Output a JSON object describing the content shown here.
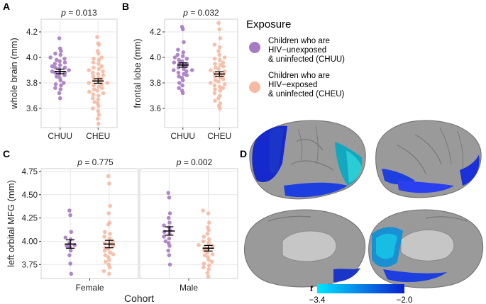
{
  "colors": {
    "chuu": "#a77bc3",
    "cheu": "#f6b9a2",
    "panel_bg": "#ffffff",
    "grid": "#e6e6e6",
    "axis": "#333333",
    "brain_base": "#9a9a9a",
    "t_low": "#00e5ff",
    "t_high": "#0a1fd0"
  },
  "chart_data": [
    {
      "panel": "A",
      "type": "scatter",
      "subtype": "beeswarm with mean ± SE",
      "title": "p = 0.013",
      "xlabel": "",
      "ylabel": "whole brain (mm)",
      "categories": [
        "CHUU",
        "CHEU"
      ],
      "yticks": [
        3.6,
        3.8,
        4.0,
        4.2
      ],
      "ylim": [
        3.45,
        4.3
      ],
      "series": [
        {
          "name": "CHUU",
          "mean": 3.89,
          "se": 0.018,
          "values": [
            4.15,
            4.07,
            4.05,
            4.03,
            4.02,
            4.0,
            3.99,
            3.98,
            3.97,
            3.96,
            3.95,
            3.94,
            3.93,
            3.92,
            3.92,
            3.91,
            3.9,
            3.89,
            3.88,
            3.88,
            3.87,
            3.86,
            3.85,
            3.84,
            3.82,
            3.8,
            3.79,
            3.78,
            3.76,
            3.75,
            3.72,
            3.68
          ]
        },
        {
          "name": "CHEU",
          "mean": 3.815,
          "se": 0.018,
          "values": [
            4.16,
            4.11,
            4.1,
            4.05,
            4.03,
            4.0,
            3.99,
            3.98,
            3.96,
            3.95,
            3.93,
            3.92,
            3.91,
            3.9,
            3.89,
            3.88,
            3.87,
            3.86,
            3.85,
            3.84,
            3.83,
            3.82,
            3.81,
            3.8,
            3.8,
            3.79,
            3.78,
            3.77,
            3.76,
            3.75,
            3.74,
            3.73,
            3.72,
            3.71,
            3.7,
            3.68,
            3.67,
            3.65,
            3.64,
            3.62,
            3.6,
            3.58,
            3.55,
            3.52,
            3.48
          ]
        }
      ]
    },
    {
      "panel": "B",
      "type": "scatter",
      "subtype": "beeswarm with mean ± SE",
      "title": "p = 0.032",
      "xlabel": "",
      "ylabel": "frontal lobe (mm)",
      "categories": [
        "CHUU",
        "CHEU"
      ],
      "yticks": [
        3.6,
        3.8,
        4.0,
        4.2
      ],
      "ylim": [
        3.45,
        4.3
      ],
      "series": [
        {
          "name": "CHUU",
          "mean": 3.94,
          "se": 0.017,
          "values": [
            4.24,
            4.22,
            4.12,
            4.06,
            4.04,
            4.02,
            4.01,
            4.0,
            3.99,
            3.98,
            3.97,
            3.96,
            3.95,
            3.95,
            3.94,
            3.93,
            3.92,
            3.91,
            3.9,
            3.9,
            3.89,
            3.88,
            3.87,
            3.86,
            3.85,
            3.84,
            3.82,
            3.8,
            3.78,
            3.76,
            3.74,
            3.72
          ]
        },
        {
          "name": "CHEU",
          "mean": 3.87,
          "se": 0.018,
          "values": [
            4.27,
            4.22,
            4.15,
            4.1,
            4.08,
            4.05,
            4.02,
            4.0,
            3.99,
            3.98,
            3.96,
            3.95,
            3.94,
            3.93,
            3.92,
            3.91,
            3.9,
            3.89,
            3.88,
            3.87,
            3.86,
            3.85,
            3.84,
            3.83,
            3.82,
            3.81,
            3.8,
            3.79,
            3.78,
            3.77,
            3.76,
            3.75,
            3.74,
            3.72,
            3.7,
            3.68,
            3.66,
            3.64,
            3.62,
            3.6
          ]
        }
      ]
    },
    {
      "panel": "C",
      "type": "scatter",
      "subtype": "faceted beeswarm with mean ± SE",
      "xlabel": "Cohort",
      "ylabel": "left orbital MFG (mm)",
      "yticks": [
        3.75,
        4.0,
        4.25,
        4.5,
        4.75
      ],
      "ylim": [
        3.6,
        4.78
      ],
      "facets": [
        {
          "name": "Female",
          "title": "p = 0.775",
          "series": [
            {
              "name": "CHUU",
              "mean": 3.97,
              "se": 0.045,
              "values": [
                4.33,
                4.28,
                4.1,
                4.04,
                4.02,
                3.98,
                3.96,
                3.95,
                3.94,
                3.9,
                3.85,
                3.76,
                3.65
              ]
            },
            {
              "name": "CHEU",
              "mean": 3.97,
              "se": 0.04,
              "values": [
                4.7,
                4.62,
                4.38,
                4.3,
                4.2,
                4.18,
                4.1,
                4.08,
                4.05,
                4.03,
                4.0,
                3.98,
                3.97,
                3.95,
                3.93,
                3.92,
                3.9,
                3.88,
                3.86,
                3.85,
                3.83,
                3.8,
                3.78,
                3.75,
                3.72,
                3.68,
                3.65
              ]
            }
          ]
        },
        {
          "name": "Male",
          "title": "p = 0.002",
          "series": [
            {
              "name": "CHUU",
              "mean": 4.11,
              "se": 0.045,
              "values": [
                4.52,
                4.47,
                4.3,
                4.25,
                4.2,
                4.17,
                4.15,
                4.12,
                4.1,
                4.08,
                4.05,
                4.03,
                4.0,
                3.98,
                3.95,
                3.9,
                3.85,
                3.75
              ]
            },
            {
              "name": "CHEU",
              "mean": 3.925,
              "se": 0.03,
              "values": [
                4.33,
                4.3,
                4.2,
                4.15,
                4.12,
                4.08,
                4.05,
                4.02,
                4.0,
                3.98,
                3.96,
                3.95,
                3.93,
                3.92,
                3.9,
                3.88,
                3.86,
                3.85,
                3.83,
                3.8,
                3.78,
                3.76,
                3.74,
                3.72,
                3.7,
                3.66,
                3.62
              ]
            }
          ]
        }
      ]
    }
  ],
  "panel_labels": {
    "A": "A",
    "B": "B",
    "C": "C",
    "D": "D"
  },
  "legend": {
    "title": "Exposure",
    "items": [
      {
        "key": "CHUU",
        "lines": [
          "Children who are",
          "HIV−unexposed",
          "& uninfected (CHUU)"
        ]
      },
      {
        "key": "CHEU",
        "lines": [
          "Children who are",
          "HIV−exposed",
          "& uninfected (CHEU)"
        ]
      }
    ]
  },
  "colorbar": {
    "label": "t",
    "min_label": "−3.4",
    "max_label": "−2.0",
    "min": -3.4,
    "max": -2.0
  }
}
